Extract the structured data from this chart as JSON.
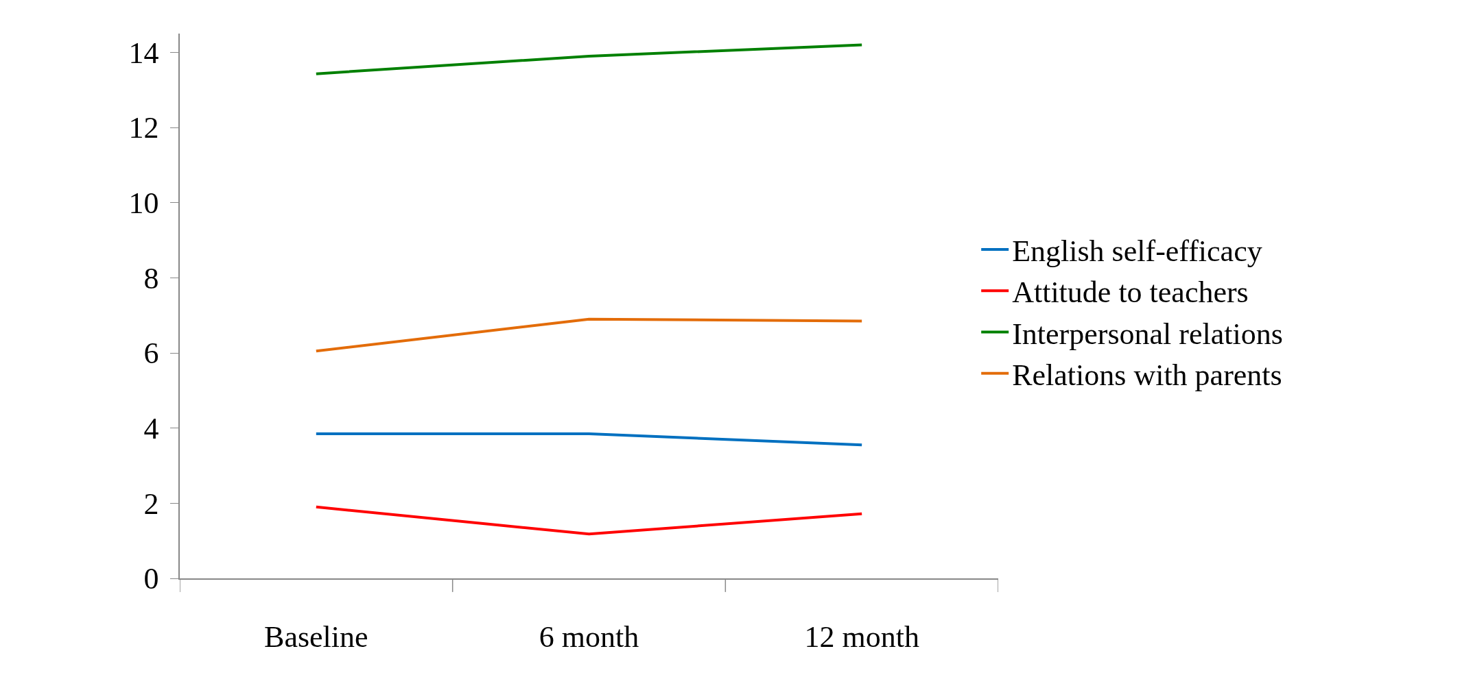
{
  "chart_data": {
    "type": "line",
    "categories": [
      "Baseline",
      "6 month",
      "12 month"
    ],
    "series": [
      {
        "name": "English self-efficacy",
        "color": "#0070c0",
        "values": [
          3.85,
          3.85,
          3.55
        ]
      },
      {
        "name": "Attitude to teachers",
        "color": "#ff0000",
        "values": [
          1.9,
          1.18,
          1.72
        ]
      },
      {
        "name": "Interpersonal relations",
        "color": "#008000",
        "values": [
          13.43,
          13.9,
          14.2
        ]
      },
      {
        "name": "Relations with parents",
        "color": "#e36c09",
        "values": [
          6.05,
          6.9,
          6.85
        ]
      }
    ],
    "ylim": [
      0,
      14.5
    ],
    "yticks": [
      0,
      2,
      4,
      6,
      8,
      10,
      12,
      14
    ],
    "legend": "right",
    "marker": "none",
    "line_style": "solid"
  }
}
